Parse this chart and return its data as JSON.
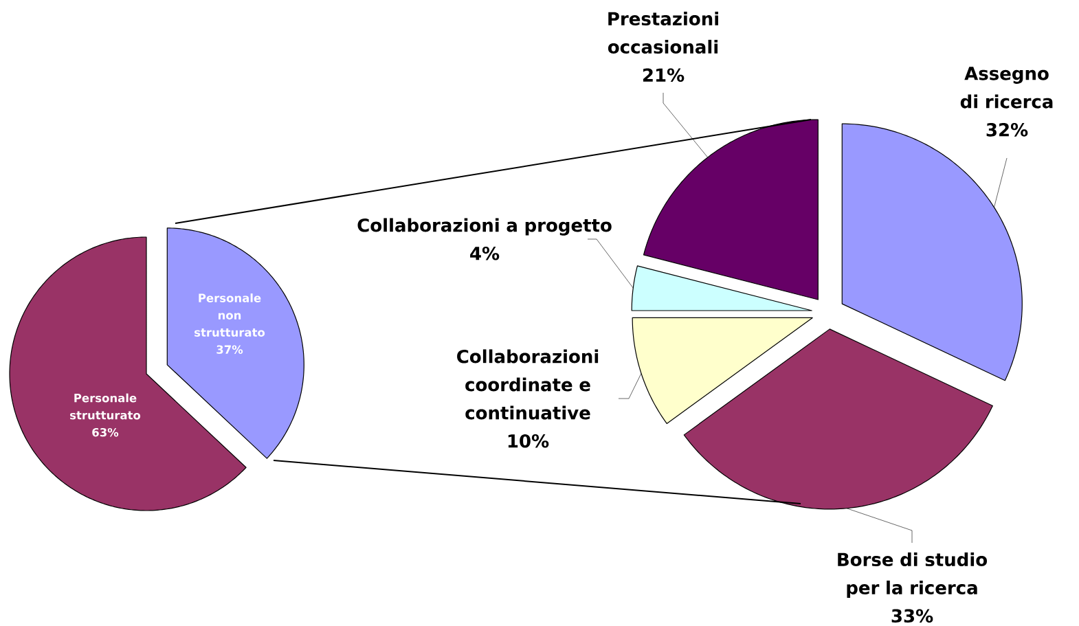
{
  "chart_data": [
    {
      "type": "pie",
      "categories": [
        "Personale non strutturato",
        "Personale strutturato"
      ],
      "values": [
        37,
        63
      ],
      "colors": [
        "#9999ff",
        "#993366"
      ],
      "value_labels": [
        "37%",
        "63%"
      ]
    },
    {
      "type": "pie",
      "categories": [
        "Assegno di ricerca",
        "Borse di studio per la ricerca",
        "Collaborazioni coordinate e continuative",
        "Collaborazioni a progetto",
        "Prestazioni occasionali"
      ],
      "values": [
        32,
        33,
        10,
        4,
        21
      ],
      "colors": [
        "#9999ff",
        "#993366",
        "#ffffcc",
        "#ccffff",
        "#660066"
      ],
      "value_labels": [
        "32%",
        "33%",
        "10%",
        "4%",
        "21%"
      ]
    }
  ]
}
